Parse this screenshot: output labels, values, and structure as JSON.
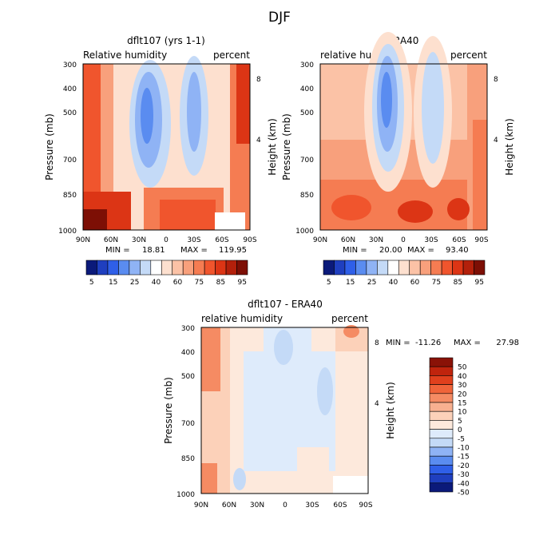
{
  "figure_title": "DJF",
  "colors": {
    "rh_scale": [
      "#0b1a7a",
      "#1f3fbf",
      "#2f5fe8",
      "#5a8cf0",
      "#8fb3f5",
      "#c4daf7",
      "#ffffff",
      "#fde0cf",
      "#fbc2a6",
      "#f8a07c",
      "#f57c52",
      "#f0552d",
      "#dc3515",
      "#b3200b",
      "#7d0f05"
    ],
    "diff_scale": [
      "#0b1a7a",
      "#1f3fbf",
      "#2f5fe8",
      "#5a8cf0",
      "#8fb3f5",
      "#c4daf7",
      "#deebfb",
      "#fde9dc",
      "#fcd1b9",
      "#f8b090",
      "#f58b63",
      "#f0643a",
      "#e0401d",
      "#c0240d",
      "#8a1207"
    ]
  },
  "chart_data": [
    {
      "type": "heatmap",
      "title": "dflt107 (yrs 1-1)",
      "left_string": "Relative humidity",
      "right_string": "percent",
      "xlabel": "",
      "ylabel": "Pressure (mb)",
      "ylabel_right": "Height (km)",
      "x_tick_labels": [
        "90N",
        "60N",
        "30N",
        "0",
        "30S",
        "60S",
        "90S"
      ],
      "y_tick_labels": [
        "300",
        "400",
        "500",
        "700",
        "850",
        "1000"
      ],
      "y_right_tick_labels": [
        "8",
        "4"
      ],
      "xlim": [
        90,
        -90
      ],
      "ylim": [
        1000,
        300
      ],
      "min_label": "MIN =",
      "min_value": "18.81",
      "max_label": "MAX =",
      "max_value": "119.95",
      "colorbar_labels": [
        "5",
        "15",
        "25",
        "40",
        "60",
        "75",
        "85",
        "95"
      ]
    },
    {
      "type": "heatmap",
      "title": "ERA40",
      "left_string": "relative humidity",
      "right_string": "percent",
      "xlabel": "",
      "ylabel": "Pressure (mb)",
      "ylabel_right": "Height (km)",
      "x_tick_labels": [
        "90N",
        "60N",
        "30N",
        "0",
        "30S",
        "60S",
        "90S"
      ],
      "y_tick_labels": [
        "300",
        "400",
        "500",
        "700",
        "850",
        "1000"
      ],
      "y_right_tick_labels": [
        "8",
        "4"
      ],
      "xlim": [
        90,
        -90
      ],
      "ylim": [
        1000,
        300
      ],
      "min_label": "MIN =",
      "min_value": "20.00",
      "max_label": "MAX =",
      "max_value": "93.40",
      "colorbar_labels": [
        "5",
        "15",
        "25",
        "40",
        "60",
        "75",
        "85",
        "95"
      ]
    },
    {
      "type": "heatmap",
      "title": "dflt107 - ERA40",
      "left_string": "relative humidity",
      "right_string": "percent",
      "xlabel": "",
      "ylabel": "Pressure (mb)",
      "ylabel_right": "Height (km)",
      "x_tick_labels": [
        "90N",
        "60N",
        "30N",
        "0",
        "30S",
        "60S",
        "90S"
      ],
      "y_tick_labels": [
        "300",
        "400",
        "500",
        "700",
        "850",
        "1000"
      ],
      "y_right_tick_labels": [
        "8",
        "4"
      ],
      "xlim": [
        90,
        -90
      ],
      "ylim": [
        1000,
        300
      ],
      "min_label": "MIN =",
      "min_value": "-11.26",
      "max_label": "MAX =",
      "max_value": "27.98",
      "colorbar_labels": [
        "50",
        "40",
        "30",
        "20",
        "15",
        "10",
        "5",
        "0",
        "-5",
        "-10",
        "-15",
        "-20",
        "-30",
        "-40",
        "-50"
      ]
    }
  ]
}
